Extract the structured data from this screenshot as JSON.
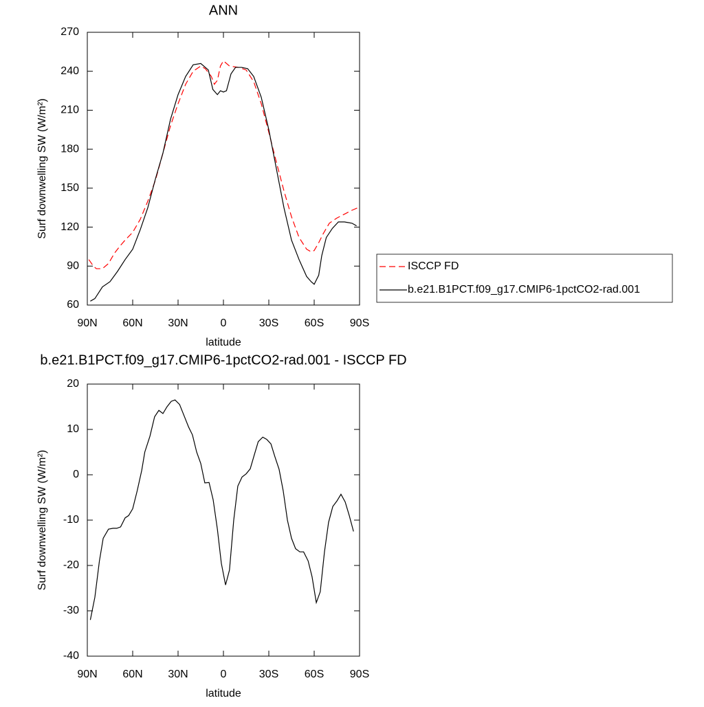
{
  "chart_data": [
    {
      "type": "line",
      "title": "ANN",
      "xlabel": "latitude",
      "ylabel": "Surf downwelling SW (W/m²)",
      "xlim": [
        90,
        -90
      ],
      "ylim": [
        60,
        270
      ],
      "xticks": [
        {
          "value": 90,
          "label": "90N"
        },
        {
          "value": 60,
          "label": "60N"
        },
        {
          "value": 30,
          "label": "30N"
        },
        0,
        {
          "value": -30,
          "label": "30S"
        },
        {
          "value": -60,
          "label": "60S"
        },
        {
          "value": -90,
          "label": "90S"
        }
      ],
      "yticks": [
        60,
        90,
        120,
        150,
        180,
        210,
        240,
        270
      ],
      "legend": "right",
      "series": [
        {
          "name": "ISCCP FD",
          "color": "#ff0000",
          "line_style": "dashed",
          "x": [
            89,
            86,
            84,
            80,
            76,
            72,
            68,
            65,
            60,
            55,
            50,
            45,
            40,
            35,
            30,
            25,
            20,
            15,
            12,
            8,
            6,
            4,
            2,
            0,
            -4,
            -10,
            -15,
            -20,
            -25,
            -30,
            -35,
            -40,
            -45,
            -50,
            -55,
            -58,
            -60,
            -63,
            -66,
            -70,
            -75,
            -80,
            -85,
            -89
          ],
          "values": [
            95,
            90,
            88,
            88,
            92,
            100,
            106,
            110,
            116,
            126,
            140,
            156,
            177,
            198,
            215,
            230,
            240,
            244,
            242,
            236,
            230,
            233,
            244,
            248,
            244,
            243,
            241,
            232,
            215,
            193,
            170,
            148,
            128,
            112,
            103,
            101,
            102,
            108,
            115,
            123,
            127,
            130,
            133,
            135
          ]
        },
        {
          "name": "b.e21.B1PCT.f09_g17.CMIP6-1pctCO2-rad.001",
          "color": "#000000",
          "line_style": "solid",
          "x": [
            88,
            85,
            80,
            75,
            70,
            65,
            60,
            55,
            50,
            45,
            40,
            35,
            30,
            25,
            20,
            15,
            10,
            7,
            4,
            2,
            0,
            -2,
            -5,
            -8,
            -12,
            -16,
            -20,
            -25,
            -30,
            -35,
            -40,
            -45,
            -50,
            -55,
            -58,
            -60,
            -63,
            -65,
            -68,
            -72,
            -76,
            -80,
            -85,
            -88
          ],
          "values": [
            63,
            65,
            74,
            78,
            86,
            95,
            103,
            118,
            135,
            157,
            177,
            203,
            222,
            236,
            245,
            246,
            241,
            226,
            222,
            225,
            224,
            225,
            238,
            243,
            243,
            242,
            236,
            220,
            195,
            165,
            135,
            110,
            95,
            82,
            78,
            76,
            83,
            98,
            112,
            119,
            124,
            124,
            123,
            121
          ]
        }
      ]
    },
    {
      "type": "line",
      "title": "b.e21.B1PCT.f09_g17.CMIP6-1pctCO2-rad.001 - ISCCP FD",
      "xlabel": "latitude",
      "ylabel": "Surf downwelling SW (W/m²)",
      "xlim": [
        90,
        -90
      ],
      "ylim": [
        -40,
        20
      ],
      "xticks": [
        {
          "value": 90,
          "label": "90N"
        },
        {
          "value": 60,
          "label": "60N"
        },
        {
          "value": 30,
          "label": "30N"
        },
        0,
        {
          "value": -30,
          "label": "30S"
        },
        {
          "value": -60,
          "label": "60S"
        },
        {
          "value": -90,
          "label": "90S"
        }
      ],
      "yticks": [
        -40,
        -30,
        -20,
        -10,
        0,
        10,
        20
      ],
      "color": "#000000",
      "x": [
        88,
        85,
        82,
        79.5,
        76,
        73,
        70.5,
        68,
        65,
        62.7,
        60,
        57,
        54,
        52,
        48.6,
        45.5,
        42.7,
        40,
        37.3,
        34.5,
        32,
        29,
        26,
        23,
        20.5,
        17.7,
        15,
        12.3,
        9.5,
        6.8,
        4,
        1.4,
        -1.4,
        -4,
        -6.8,
        -9.5,
        -12.3,
        -15,
        -17.7,
        -20.5,
        -23,
        -26,
        -28.6,
        -31.4,
        -34,
        -36.8,
        -39.5,
        -42.3,
        -45,
        -47.7,
        -50.5,
        -53,
        -56,
        -58.6,
        -61.4,
        -64,
        -66.8,
        -69.5,
        -72.3,
        -75,
        -77.7,
        -80.5,
        -83.2,
        -86
      ],
      "values": [
        -32,
        -27,
        -19,
        -14,
        -12,
        -11.8,
        -11.8,
        -11.5,
        -9.5,
        -9,
        -7.5,
        -3.5,
        1,
        5,
        8.5,
        12.8,
        14.2,
        13.5,
        15,
        16.2,
        16.5,
        15.5,
        13,
        10.5,
        8.8,
        5,
        2.5,
        -1.8,
        -1.7,
        -5.5,
        -12,
        -19.5,
        -24.3,
        -21,
        -10,
        -2.5,
        -0.5,
        0.2,
        1.3,
        4.5,
        7.3,
        8.3,
        7.8,
        6.8,
        4,
        1.2,
        -3.5,
        -10,
        -14,
        -16.3,
        -17,
        -17,
        -19,
        -22.5,
        -28.2,
        -25.8,
        -17,
        -10.5,
        -7,
        -5.8,
        -4.3,
        -6,
        -9,
        -12.5
      ]
    }
  ]
}
